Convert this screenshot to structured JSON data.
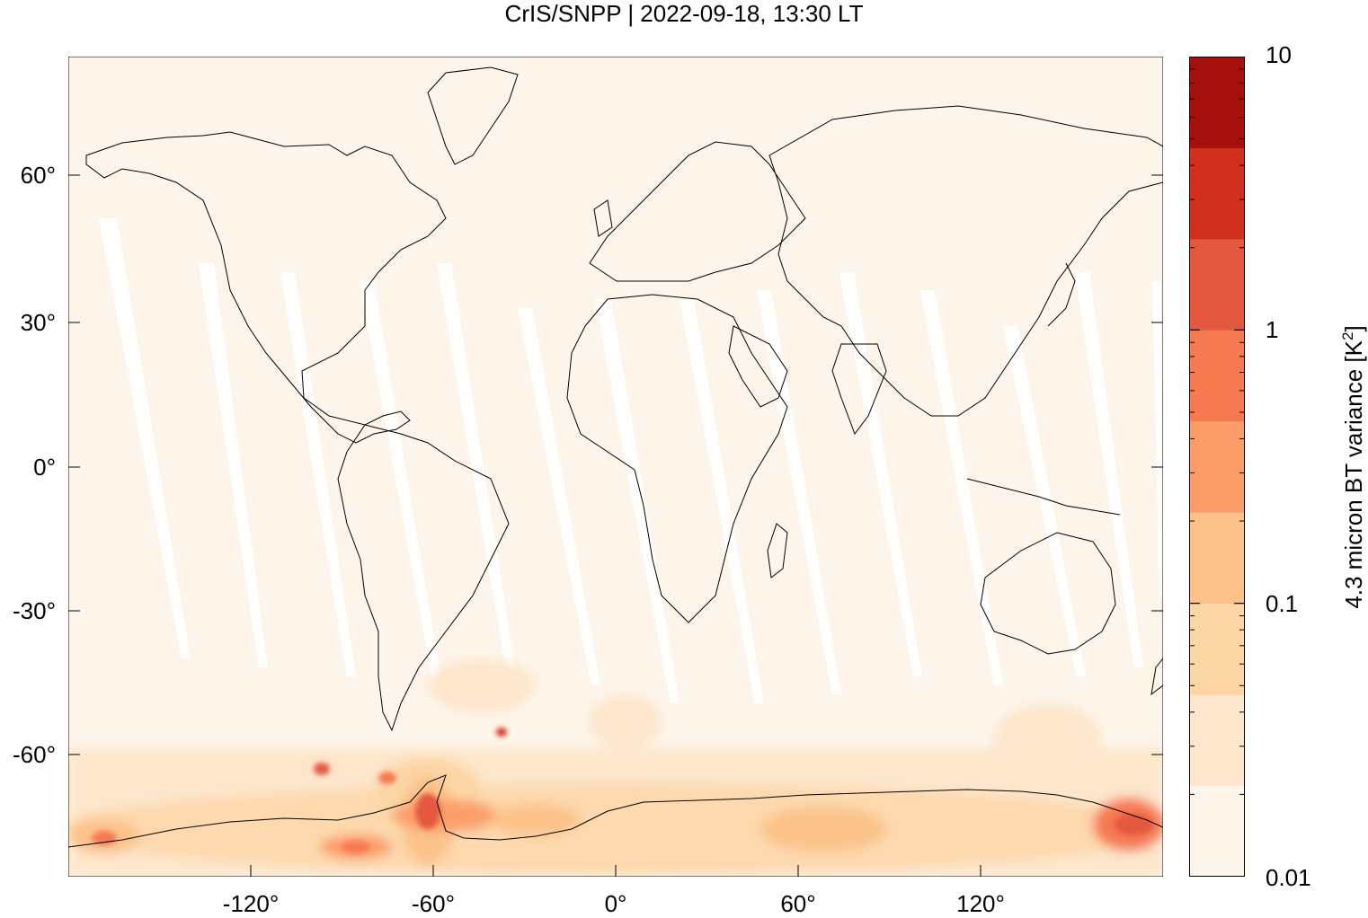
{
  "title": "CrIS/SNPP | 2022-09-18, 13:30 LT",
  "map": {
    "projection": "equirectangular",
    "lon_range": [
      -180,
      180
    ],
    "lat_range": [
      -90,
      90
    ],
    "background_color": "#fef5ea",
    "coastline_color": "#000000",
    "x_ticks": [
      {
        "value": -120,
        "label": "-120°"
      },
      {
        "value": -60,
        "label": "-60°"
      },
      {
        "value": 0,
        "label": "0°"
      },
      {
        "value": 60,
        "label": "60°"
      },
      {
        "value": 120,
        "label": "120°"
      }
    ],
    "y_ticks": [
      {
        "value": 60,
        "label": "60°"
      },
      {
        "value": 30,
        "label": "30°"
      },
      {
        "value": 0,
        "label": "0°"
      },
      {
        "value": -30,
        "label": "-30°"
      },
      {
        "value": -60,
        "label": "-60°"
      }
    ]
  },
  "colorbar": {
    "label_prefix": "4.3 micron BT variance [K",
    "label_sup": "2",
    "label_suffix": "]",
    "scale": "log",
    "range": [
      0.01,
      10
    ],
    "tick_labels": [
      "10",
      "1",
      "0.1",
      "0.01"
    ],
    "levels": [
      "#fef5ea",
      "#fde6cc",
      "#fdd6a5",
      "#fcc28a",
      "#fc9d69",
      "#f57a52",
      "#e45840",
      "#d2301f",
      "#a50f0c"
    ]
  }
}
